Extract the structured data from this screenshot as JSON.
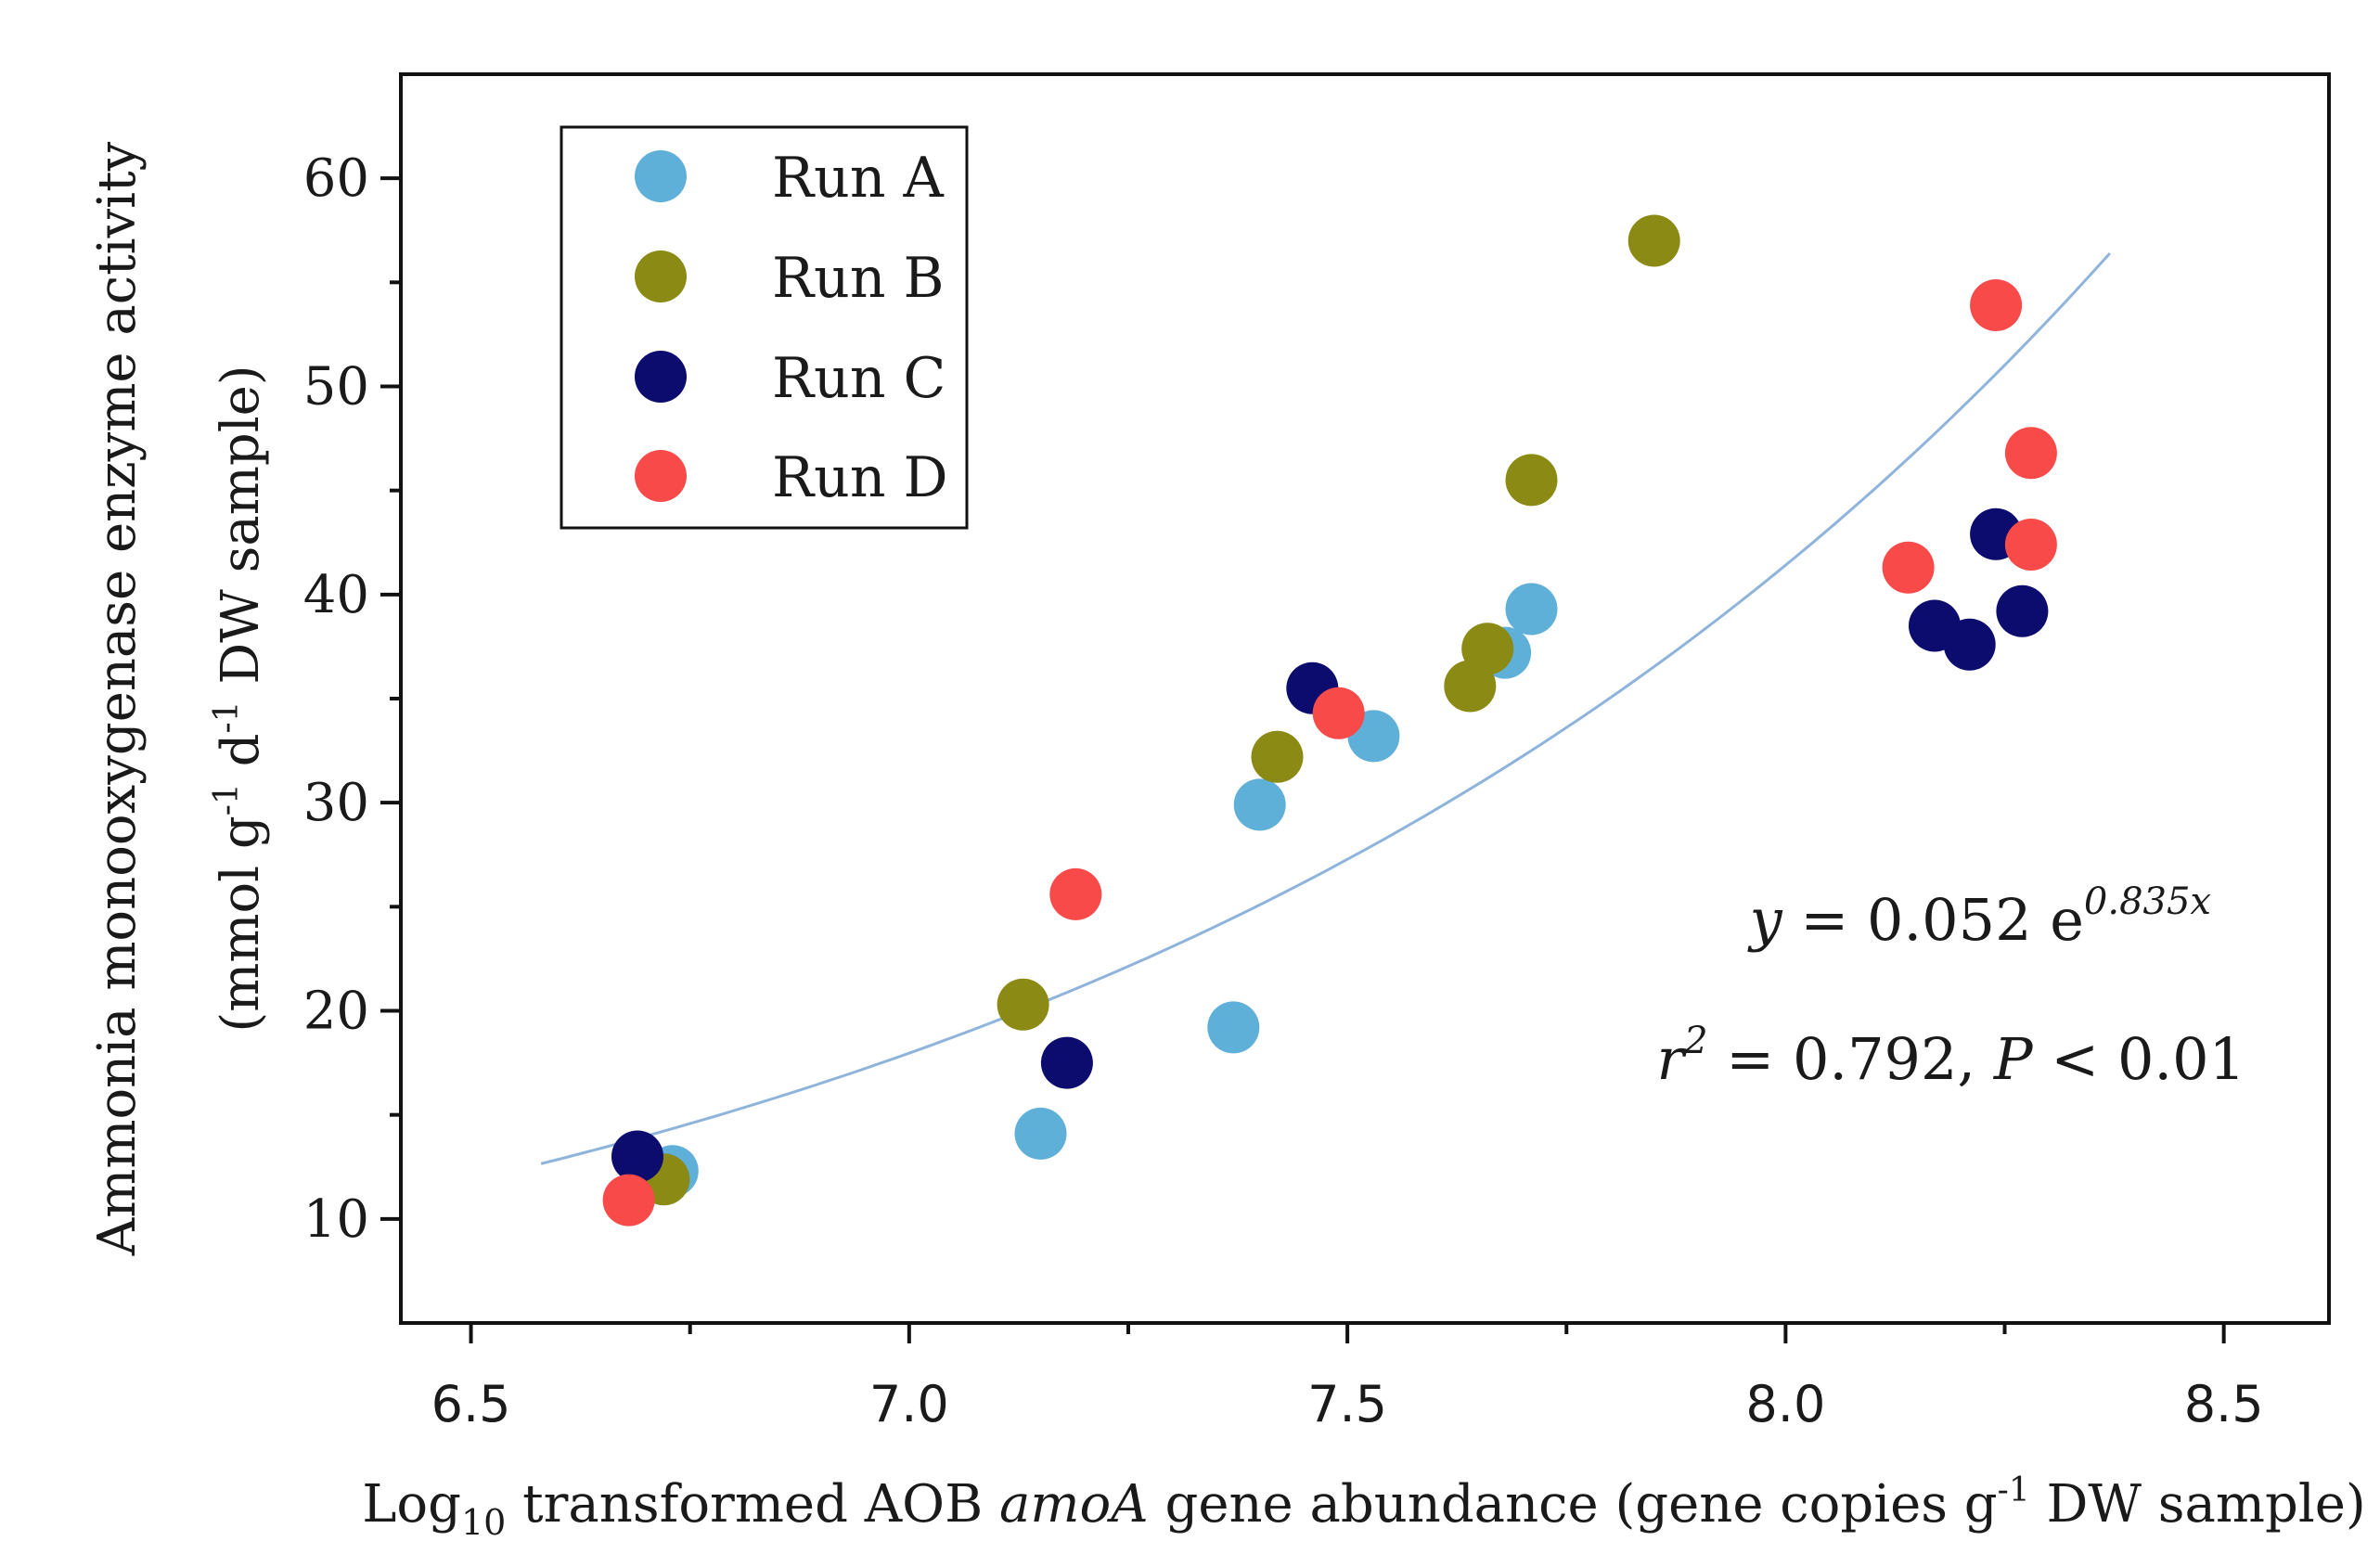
{
  "chart_data": {
    "type": "scatter",
    "title": "",
    "xlabel": {
      "prefix": "Log",
      "sub": "10",
      "mid": " transformed AOB ",
      "italic": "amoA",
      "rest": " gene abundance (gene copies g",
      "sup": "-1",
      "end": " DW sample)"
    },
    "ylabel": {
      "line1": "Ammonia monooxygenase enzyme activity",
      "line2_prefix": "(mmol g",
      "line2_sup1": "-1",
      "line2_mid": " d",
      "line2_sup2": "-1",
      "line2_end": " DW sample)"
    },
    "xlim": [
      6.42,
      8.62
    ],
    "ylim": [
      5,
      65
    ],
    "xticks": [
      6.5,
      7.0,
      7.5,
      8.0,
      8.5
    ],
    "xtick_labels": [
      "6.5",
      "7.0",
      "7.5",
      "8.0",
      "8.5"
    ],
    "yticks": [
      10,
      20,
      30,
      40,
      50,
      60
    ],
    "ytick_labels": [
      "10",
      "20",
      "30",
      "40",
      "50",
      "60"
    ],
    "grid": false,
    "legend_position": "top-left",
    "series": [
      {
        "name": "Run A",
        "color": "#5fb0d8",
        "points": [
          [
            6.73,
            12.3
          ],
          [
            7.15,
            14.1
          ],
          [
            7.37,
            19.2
          ],
          [
            7.4,
            29.9
          ],
          [
            7.53,
            33.2
          ],
          [
            7.68,
            37.2
          ],
          [
            7.71,
            39.3
          ]
        ]
      },
      {
        "name": "Run B",
        "color": "#8a8a14",
        "points": [
          [
            6.72,
            11.9
          ],
          [
            7.13,
            20.3
          ],
          [
            7.42,
            32.2
          ],
          [
            7.64,
            35.6
          ],
          [
            7.66,
            37.4
          ],
          [
            7.71,
            45.5
          ],
          [
            7.85,
            57.0
          ]
        ]
      },
      {
        "name": "Run C",
        "color": "#0c0c6e",
        "points": [
          [
            6.69,
            13.0
          ],
          [
            7.18,
            17.5
          ],
          [
            7.46,
            35.5
          ],
          [
            8.17,
            38.5
          ],
          [
            8.21,
            37.6
          ],
          [
            8.24,
            42.9
          ],
          [
            8.27,
            39.2
          ]
        ]
      },
      {
        "name": "Run D",
        "color": "#f94a4a",
        "points": [
          [
            6.68,
            10.9
          ],
          [
            7.19,
            25.6
          ],
          [
            7.49,
            34.3
          ],
          [
            8.14,
            41.3
          ],
          [
            8.24,
            53.9
          ],
          [
            8.28,
            46.8
          ],
          [
            8.28,
            42.4
          ]
        ]
      }
    ],
    "fit": {
      "a": 0.052,
      "b": 0.835,
      "x_range": [
        6.58,
        8.37
      ],
      "color": "#8fb4dc"
    },
    "annotations": {
      "equation": {
        "y": "y",
        "eq": " = 0.052 e",
        "sup": "0.835x"
      },
      "stats": {
        "r": "r",
        "r_sup": "2",
        "val": " = 0.792, ",
        "p": "P",
        "p_rest": " < 0.01"
      }
    }
  }
}
